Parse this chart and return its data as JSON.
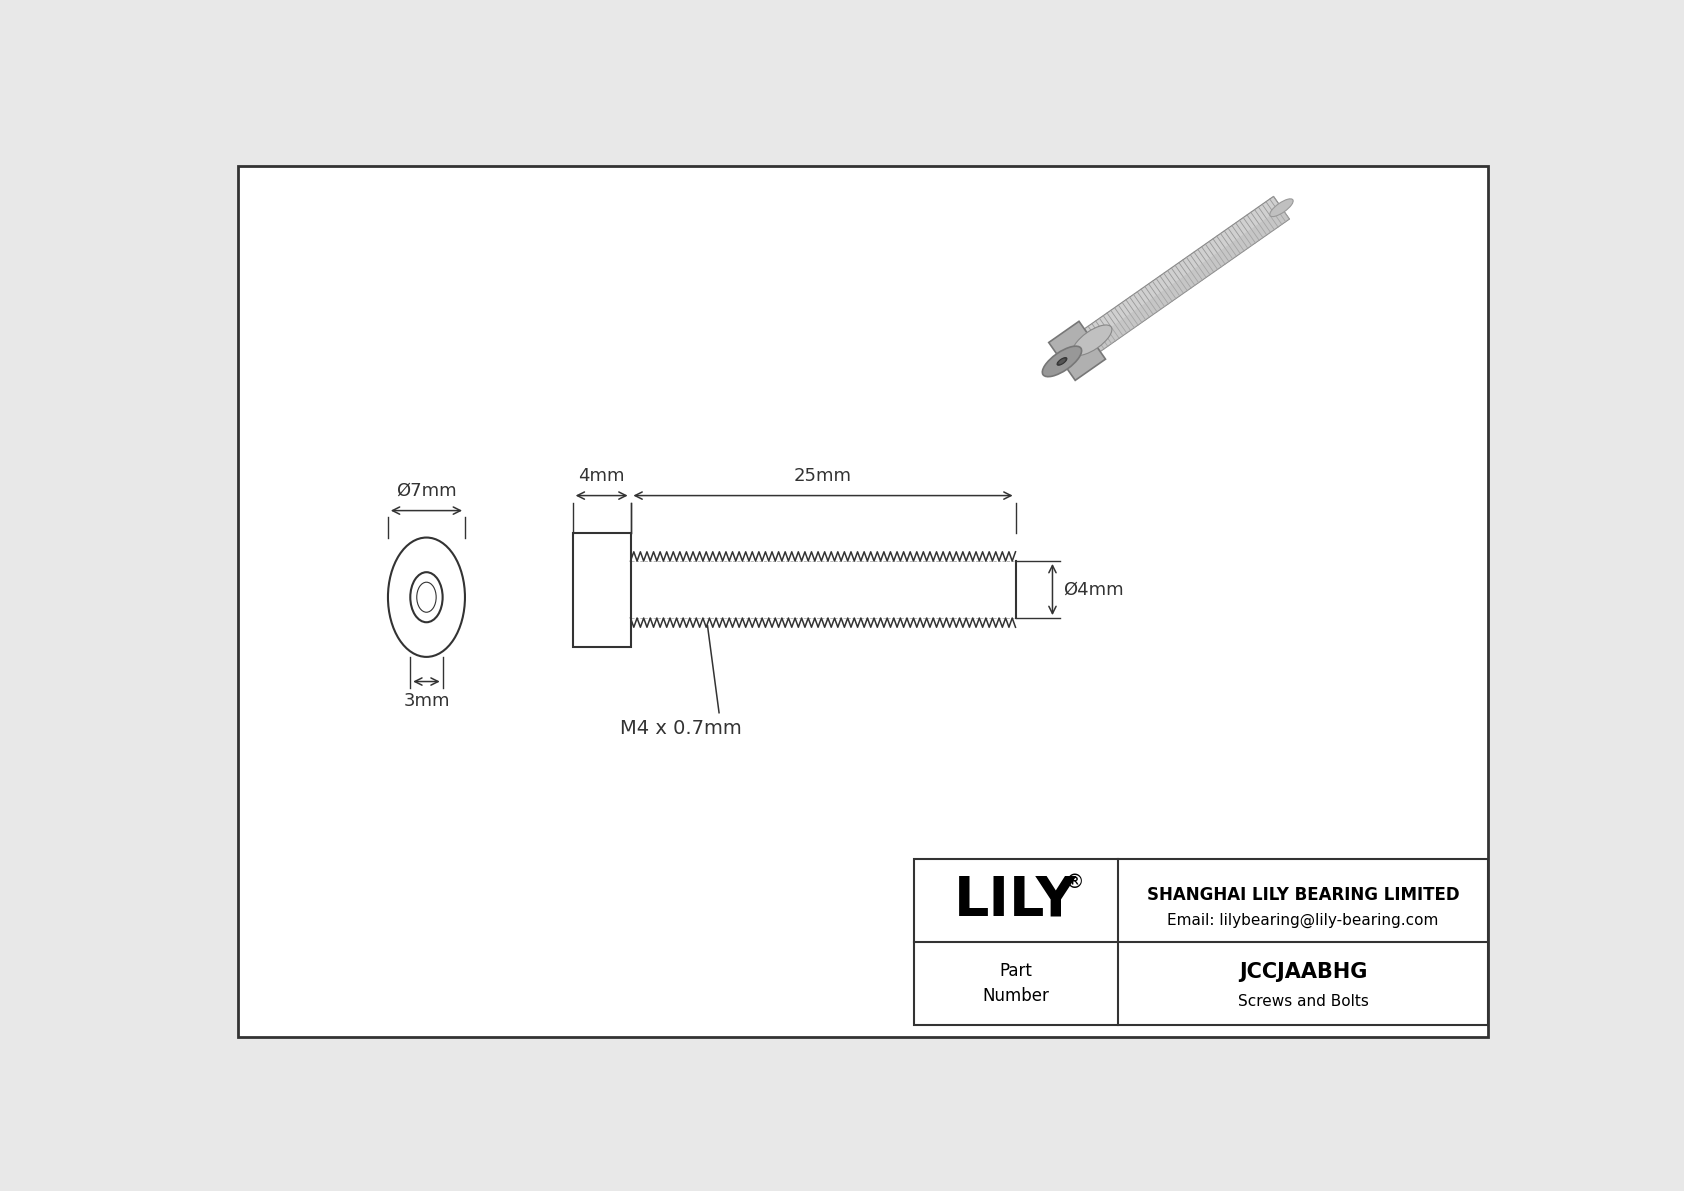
{
  "bg_color": "#e8e8e8",
  "drawing_bg": "#ffffff",
  "border_color": "#333333",
  "line_color": "#333333",
  "company": "SHANGHAI LILY BEARING LIMITED",
  "email": "Email: lilybearing@lily-bearing.com",
  "part_number": "JCCJAABHG",
  "part_category": "Screws and Bolts",
  "phi": "Ø",
  "reg": "®",
  "dim_head_diam": "7mm",
  "dim_shaft_diam": "4mm",
  "dim_head_len": "4mm",
  "dim_shaft_len": "25mm",
  "dim_socket": "3mm",
  "dim_thread": "M4 x 0.7mm",
  "lily": "LILY",
  "part_label": "Part\nNumber"
}
